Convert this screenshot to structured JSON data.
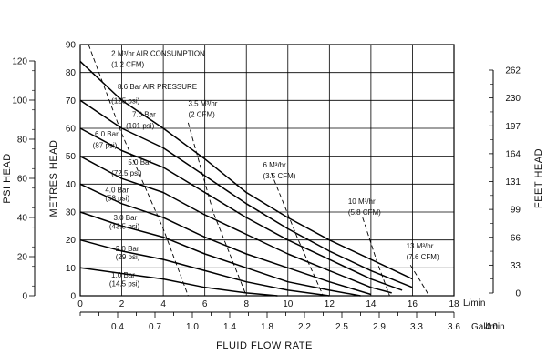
{
  "chart_data": {
    "type": "line",
    "xlabel": "FLUID FLOW RATE",
    "x_unit": "L/min",
    "x2_unit": "Gall/min",
    "ylabel": "METRES HEAD",
    "y_left_outer_label": "PSI HEAD",
    "y_right_label": "FEET HEAD",
    "xlim": [
      0,
      18
    ],
    "ylim": [
      0,
      90
    ],
    "x_ticks": [
      "0",
      "2",
      "4",
      "6",
      "8",
      "10",
      "12",
      "14",
      "16",
      "18"
    ],
    "x2_ticks": [
      "0.4",
      "0.7",
      "1.0",
      "1.4",
      "1.8",
      "2.2",
      "2.5",
      "2.9",
      "3.3",
      "3.6",
      "4.0"
    ],
    "y_ticks": [
      "0",
      "10",
      "20",
      "30",
      "40",
      "50",
      "60",
      "70",
      "80",
      "90"
    ],
    "psi_ticks": [
      "0",
      "20",
      "40",
      "60",
      "80",
      "100",
      "120"
    ],
    "feet_ticks": [
      "0",
      "33",
      "66",
      "99",
      "131",
      "164",
      "197",
      "230",
      "262"
    ],
    "grid": true,
    "series": [
      {
        "name": "8.6 Bar (125 psi)",
        "kind": "pressure",
        "x": [
          0,
          2,
          4,
          6,
          8,
          10,
          12,
          14,
          16
        ],
        "y": [
          84,
          70,
          60,
          49,
          37,
          28,
          20,
          13,
          6
        ]
      },
      {
        "name": "7.0 Bar (101 psi)",
        "kind": "pressure",
        "x": [
          0,
          2,
          4,
          6,
          8,
          10,
          12,
          14,
          16
        ],
        "y": [
          70,
          60,
          53,
          43,
          33,
          24,
          16,
          9,
          3
        ]
      },
      {
        "name": "6.0 Bar (87 psi)",
        "kind": "pressure",
        "x": [
          0,
          2,
          4,
          6,
          8,
          10,
          12,
          14,
          15.5
        ],
        "y": [
          60,
          52,
          46,
          37,
          28,
          20,
          13,
          6,
          2
        ]
      },
      {
        "name": "5.0 Bar (72.5 psi)",
        "kind": "pressure",
        "x": [
          0,
          2,
          4,
          6,
          8,
          10,
          12,
          14,
          15
        ],
        "y": [
          50,
          42,
          37,
          29,
          22,
          15,
          9,
          3,
          1
        ]
      },
      {
        "name": "4.0 Bar (58 psi)",
        "kind": "pressure",
        "x": [
          0,
          2,
          4,
          6,
          8,
          10,
          12,
          14
        ],
        "y": [
          40,
          33,
          28,
          21,
          15,
          10,
          5,
          0.5
        ]
      },
      {
        "name": "3.0 Bar (43.5 psi)",
        "kind": "pressure",
        "x": [
          0,
          2,
          4,
          6,
          8,
          10,
          12,
          13.5
        ],
        "y": [
          30,
          25,
          21,
          15,
          10,
          5,
          2,
          0
        ]
      },
      {
        "name": "2.0 Bar (29 psi)",
        "kind": "pressure",
        "x": [
          0,
          2,
          4,
          6,
          8,
          10,
          12
        ],
        "y": [
          20,
          16,
          13,
          9,
          5,
          2,
          0
        ]
      },
      {
        "name": "1.0 Bar (14.5 psi)",
        "kind": "pressure",
        "x": [
          0,
          2,
          4,
          6,
          8,
          9.5
        ],
        "y": [
          10,
          8,
          6,
          3,
          1,
          0
        ]
      },
      {
        "name": "2 M³/hr (1.2 CFM)",
        "kind": "air",
        "x": [
          0.4,
          2,
          4,
          5.2
        ],
        "y": [
          90,
          58,
          24,
          0
        ]
      },
      {
        "name": "3.5 M³/hr (2 CFM)",
        "kind": "air",
        "x": [
          5.2,
          6.4,
          8
        ],
        "y": [
          62,
          30,
          0
        ]
      },
      {
        "name": "6 M³/hr (3.5 CFM)",
        "kind": "air",
        "x": [
          9.2,
          10.5,
          11.7
        ],
        "y": [
          44,
          20,
          0
        ]
      },
      {
        "name": "10 M³/hr (5.8 CFM)",
        "kind": "air",
        "x": [
          13.6,
          14.3,
          14.9
        ],
        "y": [
          28,
          12,
          0
        ]
      },
      {
        "name": "13 M³/hr (7.6 CFM)",
        "kind": "air",
        "x": [
          15.9,
          16.4,
          16.8
        ],
        "y": [
          11,
          5,
          0
        ]
      }
    ],
    "labels": [
      {
        "text": "2 M³/hr AIR CONSUMPTION",
        "x": 1.5,
        "y": 86
      },
      {
        "text": "(1.2 CFM)",
        "x": 1.5,
        "y": 82
      },
      {
        "text": "8.6 Bar AIR PRESSURE",
        "x": 1.8,
        "y": 74
      },
      {
        "text": "(125 psi)",
        "x": 1.5,
        "y": 69
      },
      {
        "text": "7.0 Bar",
        "x": 2.5,
        "y": 64
      },
      {
        "text": "(101 psi)",
        "x": 2.2,
        "y": 60
      },
      {
        "text": "6.0 Bar",
        "x": 0.7,
        "y": 57
      },
      {
        "text": "(87 psi)",
        "x": 0.6,
        "y": 53
      },
      {
        "text": "5.0 Bar",
        "x": 2.3,
        "y": 47
      },
      {
        "text": "(72.5 psi)",
        "x": 1.5,
        "y": 43
      },
      {
        "text": "4.0 Bar",
        "x": 1.2,
        "y": 37
      },
      {
        "text": "(58 psi)",
        "x": 1.2,
        "y": 34
      },
      {
        "text": "3.0 Bar",
        "x": 1.6,
        "y": 27
      },
      {
        "text": "(43.5 psi)",
        "x": 1.4,
        "y": 24
      },
      {
        "text": "2.0 Bar",
        "x": 1.7,
        "y": 16
      },
      {
        "text": "(29 psi)",
        "x": 1.7,
        "y": 13
      },
      {
        "text": "1.0 Bar",
        "x": 1.5,
        "y": 6.5
      },
      {
        "text": "(14.5 psi)",
        "x": 1.4,
        "y": 3.5
      },
      {
        "text": "3.5 M³/hr",
        "x": 5.2,
        "y": 68
      },
      {
        "text": "(2 CFM)",
        "x": 5.2,
        "y": 64
      },
      {
        "text": "6 M³/hr",
        "x": 8.8,
        "y": 46
      },
      {
        "text": "(3.5 CFM)",
        "x": 8.8,
        "y": 42
      },
      {
        "text": "10 M³/hr",
        "x": 12.9,
        "y": 33
      },
      {
        "text": "(5.8 CFM)",
        "x": 12.9,
        "y": 29
      },
      {
        "text": "13 M³/hr",
        "x": 15.7,
        "y": 17
      },
      {
        "text": "(7.6 CFM)",
        "x": 15.7,
        "y": 13
      }
    ]
  }
}
